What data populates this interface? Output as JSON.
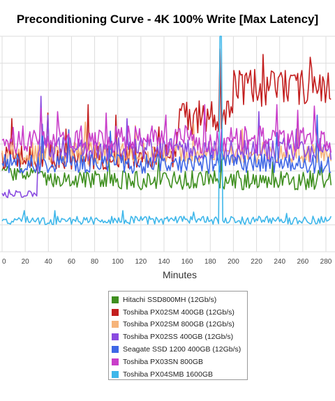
{
  "chart_data": {
    "type": "line",
    "title": "Preconditioning Curve - 4K 100% Write [Max Latency]",
    "xlabel": "Minutes",
    "ylabel": "",
    "x_ticks": [
      "0",
      "20",
      "40",
      "60",
      "80",
      "100",
      "120",
      "140",
      "160",
      "180",
      "200",
      "220",
      "240",
      "260",
      "280"
    ],
    "x_visible_ticks": [
      "0",
      "20",
      "40",
      "60",
      "80",
      "100",
      "120",
      "140",
      "160",
      "180",
      "200",
      "220",
      "240",
      "260",
      "280"
    ],
    "xlim": [
      0,
      285
    ],
    "y_gridlines": 8,
    "grid": true,
    "legend_position": "bottom-center",
    "series": [
      {
        "name": "Hitachi SSD800MH (12Gb/s)",
        "color": "#3f8f1f",
        "segments": [
          {
            "start": 0,
            "end": 30,
            "base": 250,
            "amp": 12
          },
          {
            "start": 30,
            "end": 80,
            "base": 258,
            "amp": 12
          },
          {
            "start": 80,
            "end": 285,
            "base": 258,
            "amp": 14
          }
        ],
        "spikes": [
          [
            92,
            230
          ],
          [
            135,
            225
          ],
          [
            190,
            228
          ],
          [
            234,
            232
          ],
          [
            276,
            240
          ]
        ]
      },
      {
        "name": "Toshiba PX02SM 400GB (12Gb/s)",
        "color": "#c31f1f",
        "segments": [
          {
            "start": 0,
            "end": 150,
            "base": 225,
            "amp": 18
          },
          {
            "start": 150,
            "end": 200,
            "base": 170,
            "amp": 26
          },
          {
            "start": 200,
            "end": 285,
            "base": 125,
            "amp": 28
          }
        ],
        "spikes": [
          [
            8,
            170
          ],
          [
            40,
            162
          ],
          [
            55,
            185
          ],
          [
            74,
            150
          ],
          [
            98,
            165
          ],
          [
            136,
            182
          ],
          [
            188,
            70
          ],
          [
            226,
            78
          ],
          [
            266,
            82
          ],
          [
            277,
            110
          ]
        ]
      },
      {
        "name": "Toshiba PX02SM 800GB (12Gb/s)",
        "color": "#f6b47a",
        "segments": [
          {
            "start": 0,
            "end": 285,
            "base": 220,
            "amp": 16
          }
        ],
        "spikes": [
          [
            72,
            175
          ],
          [
            115,
            180
          ],
          [
            165,
            178
          ],
          [
            208,
            185
          ],
          [
            255,
            182
          ]
        ]
      },
      {
        "name": "Toshiba PX02SS 400GB (12Gb/s)",
        "color": "#8a4be0",
        "segments": [
          {
            "start": 0,
            "end": 30,
            "base": 278,
            "amp": 6
          },
          {
            "start": 30,
            "end": 285,
            "base": 215,
            "amp": 18
          }
        ],
        "spikes": [
          [
            34,
            138
          ],
          [
            40,
            165
          ],
          [
            108,
            170
          ],
          [
            222,
            160
          ],
          [
            254,
            185
          ]
        ]
      },
      {
        "name": "Seagate SSD 1200 400GB (12Gb/s)",
        "color": "#3f67e6",
        "segments": [
          {
            "start": 0,
            "end": 285,
            "base": 235,
            "amp": 14
          }
        ],
        "spikes": [
          [
            35,
            178
          ],
          [
            58,
            186
          ],
          [
            93,
            188
          ],
          [
            189,
            195
          ],
          [
            272,
            165
          ],
          [
            238,
            190
          ]
        ]
      },
      {
        "name": "Toshiba PX03SN 800GB",
        "color": "#c93ec9",
        "segments": [
          {
            "start": 0,
            "end": 285,
            "base": 200,
            "amp": 20
          }
        ],
        "spikes": [
          [
            34,
            155
          ],
          [
            48,
            160
          ],
          [
            90,
            162
          ],
          [
            142,
            165
          ],
          [
            175,
            150
          ],
          [
            237,
            150
          ],
          [
            256,
            158
          ],
          [
            270,
            152
          ]
        ]
      },
      {
        "name": "Toshiba PX04SMB 1600GB",
        "color": "#3fb7ea",
        "segments": [
          {
            "start": 0,
            "end": 285,
            "base": 316,
            "amp": 6
          }
        ],
        "spikes": [
          [
            19,
            302
          ],
          [
            45,
            302
          ],
          [
            104,
            302
          ],
          [
            166,
            304
          ],
          [
            188,
            50
          ],
          [
            189,
            320
          ],
          [
            190,
            50
          ],
          [
            246,
            306
          ]
        ]
      }
    ]
  }
}
